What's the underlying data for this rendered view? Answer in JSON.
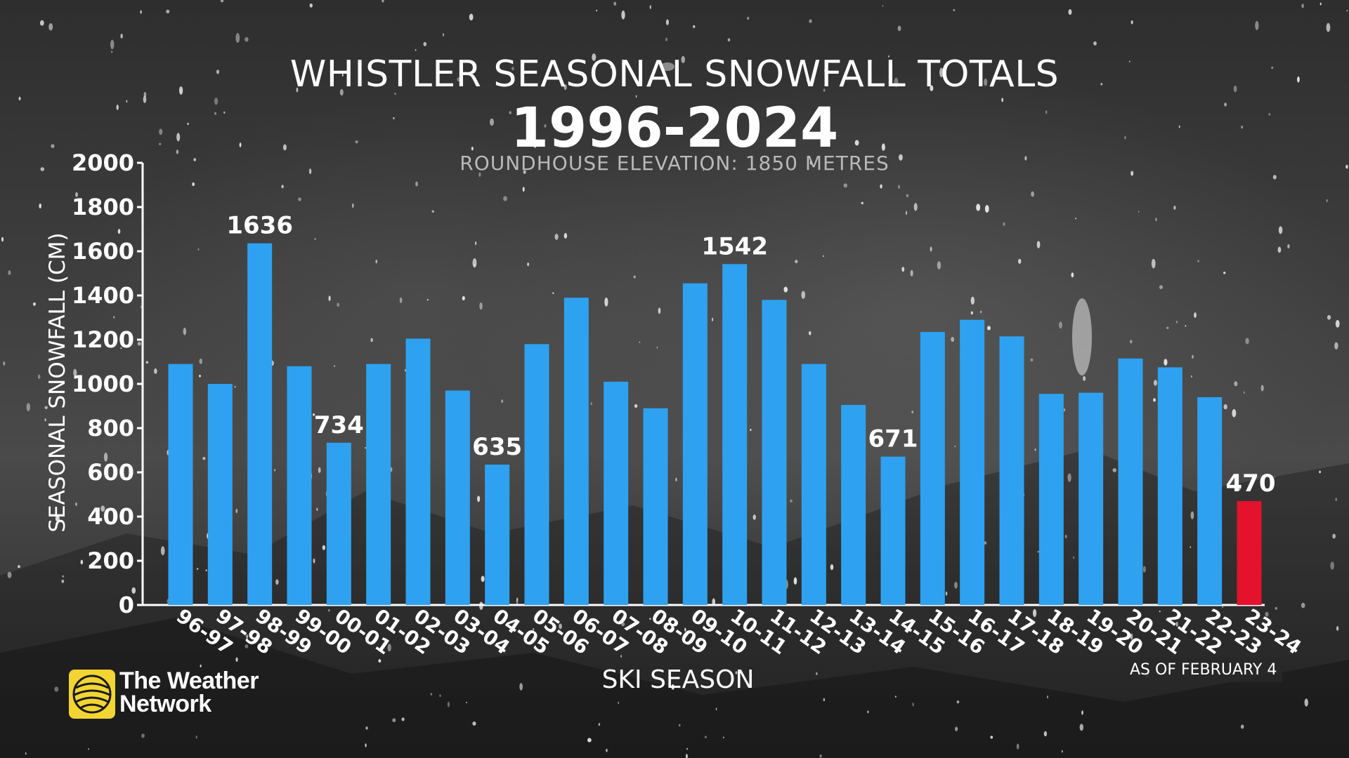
{
  "header": {
    "title": "WHISTLER SEASONAL SNOWFALL TOTALS",
    "years": "1996-2024",
    "subtitle": "ROUNDHOUSE ELEVATION: 1850 METRES"
  },
  "footer": {
    "as_of": "AS OF FEBRUARY 4",
    "brand_line1": "The Weather",
    "brand_line2": "Network"
  },
  "colors": {
    "bar": "#2ea2f0",
    "highlight_bar": "#e5122b",
    "text": "#ffffff",
    "brand_yellow": "#f2d533"
  },
  "chart_data": {
    "type": "bar",
    "title": "WHISTLER SEASONAL SNOWFALL TOTALS",
    "subtitle": "ROUNDHOUSE ELEVATION: 1850 METRES",
    "xlabel": "SKI SEASON",
    "ylabel": "SEASONAL SNOWFALL (CM)",
    "ylim": [
      0,
      2000
    ],
    "yticks": [
      0,
      200,
      400,
      600,
      800,
      1000,
      1200,
      1400,
      1600,
      1800,
      2000
    ],
    "grid": false,
    "categories": [
      "96-97",
      "97-98",
      "98-99",
      "99-00",
      "00-01",
      "01-02",
      "02-03",
      "03-04",
      "04-05",
      "05-06",
      "06-07",
      "07-08",
      "08-09",
      "09-10",
      "10-11",
      "11-12",
      "12-13",
      "13-14",
      "14-15",
      "15-16",
      "16-17",
      "17-18",
      "18-19",
      "19-20",
      "20-21",
      "21-22",
      "22-23",
      "23-24"
    ],
    "values": [
      1090,
      1000,
      1636,
      1080,
      734,
      1090,
      1205,
      970,
      635,
      1180,
      1390,
      1010,
      890,
      1455,
      1542,
      1380,
      1090,
      905,
      671,
      1235,
      1290,
      1215,
      955,
      960,
      1115,
      1075,
      940,
      470
    ],
    "data_labels": [
      {
        "category": "98-99",
        "label": "1636"
      },
      {
        "category": "00-01",
        "label": "734"
      },
      {
        "category": "04-05",
        "label": "635"
      },
      {
        "category": "10-11",
        "label": "1542"
      },
      {
        "category": "14-15",
        "label": "671"
      },
      {
        "category": "23-24",
        "label": "470"
      }
    ],
    "highlight": "23-24"
  }
}
